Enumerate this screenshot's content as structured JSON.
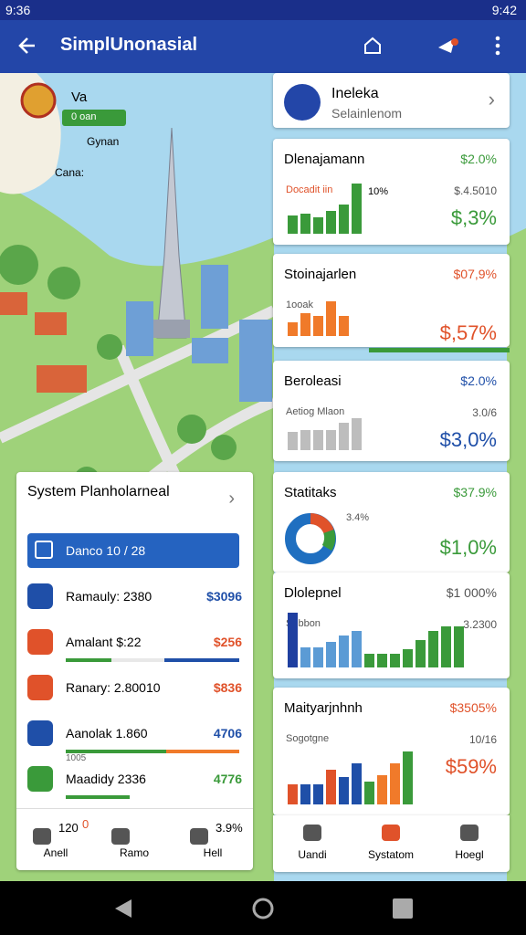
{
  "status_bar": {
    "time": "9:36",
    "clock": "9:42"
  },
  "app_bar": {
    "title": "SimplUnonasial"
  },
  "map": {
    "labels": [
      "Va",
      "Gynan",
      "Cana:"
    ],
    "badge": "0 oan"
  },
  "left_panel": {
    "title": "System Planholarneal",
    "search": "Danco 10 / 28",
    "items": [
      {
        "label": "Ramauly: 2380",
        "value": "$3096",
        "color": "#1f4fa8"
      },
      {
        "label": "Amalant $:22",
        "value": "$256",
        "color": "#e0522a"
      },
      {
        "label": "Ranary: 2.80010",
        "value": "$836",
        "color": "#e0522a"
      },
      {
        "label": "Aanolak 1.860",
        "value": "4706",
        "sub": "1005",
        "color": "#1f4fa8"
      },
      {
        "label": "Maadidy 2336",
        "value": "4776",
        "color": "#3a9a3a"
      }
    ],
    "tabs": [
      {
        "top": "120",
        "badge": "0",
        "label": "Anell"
      },
      {
        "top": "",
        "badge": "",
        "label": "Ramo"
      },
      {
        "top": "3.9%",
        "badge": "",
        "label": "Hell"
      }
    ]
  },
  "right_cards": [
    {
      "title": "Ineleka",
      "subtitle": "Selainlenom"
    },
    {
      "title": "Dlenajamann",
      "value": "$2.0%",
      "chart_label": "Docadit iin",
      "chart_note": "10%",
      "side": "$.4.5010",
      "big": "$,3%",
      "big_color": "#3a9a3a",
      "bars": [
        20,
        22,
        18,
        25,
        32,
        55
      ],
      "colors": [
        "#3a9a3a",
        "#3a9a3a",
        "#3a9a3a",
        "#3a9a3a",
        "#3a9a3a",
        "#3a9a3a"
      ]
    },
    {
      "title": "Stoinajarlen",
      "value": "$07,9%",
      "chart_label": "1ooak",
      "big": "$,57%",
      "big_color": "#e0522a",
      "bars": [
        15,
        25,
        22,
        38,
        22
      ],
      "colors": [
        "#f07a2a",
        "#f07a2a",
        "#f07a2a",
        "#f07a2a",
        "#f07a2a"
      ]
    },
    {
      "title": "Beroleasi",
      "value": "$2.0%",
      "chart_label": "Aetiog Mlaon",
      "side": "3.0/6",
      "big": "$3,0%",
      "big_color": "#1f4fa8",
      "bars": [
        20,
        22,
        22,
        22,
        30,
        35
      ],
      "colors": [
        "#bdbdbd",
        "#bdbdbd",
        "#bdbdbd",
        "#bdbdbd",
        "#bdbdbd",
        "#bdbdbd"
      ]
    },
    {
      "title": "Statitaks",
      "value": "$37.9%",
      "chart_label": "3.4%",
      "big": "$1,0%",
      "big_color": "#3a9a3a"
    },
    {
      "title": "Dlolepnel",
      "value": "$1 000%",
      "chart_label": "Sobbon",
      "side": "3.2300",
      "bars": [
        60,
        22,
        22,
        28,
        35,
        40,
        15,
        15,
        15,
        20,
        30,
        40,
        45,
        45
      ],
      "colors": [
        "#1f3fa0",
        "#5b9bd5",
        "#5b9bd5",
        "#5b9bd5",
        "#5b9bd5",
        "#5b9bd5",
        "#3a9a3a",
        "#3a9a3a",
        "#3a9a3a",
        "#3a9a3a",
        "#3a9a3a",
        "#3a9a3a",
        "#3a9a3a",
        "#3a9a3a"
      ]
    },
    {
      "title": "Maityarjnhnh",
      "value": "$3505%",
      "chart_label": "Sogotgne",
      "side": "10/16",
      "big": "$59%",
      "big_color": "#e0522a",
      "bars": [
        22,
        22,
        22,
        38,
        30,
        45,
        25,
        32,
        45,
        58
      ],
      "colors": [
        "#e0522a",
        "#1f4fa8",
        "#1f4fa8",
        "#e0522a",
        "#1f4fa8",
        "#1f4fa8",
        "#3a9a3a",
        "#f07a2a",
        "#f07a2a",
        "#3a9a3a"
      ]
    }
  ],
  "right_tabs": [
    "Uandi",
    "Systatom",
    "Hoegl"
  ]
}
